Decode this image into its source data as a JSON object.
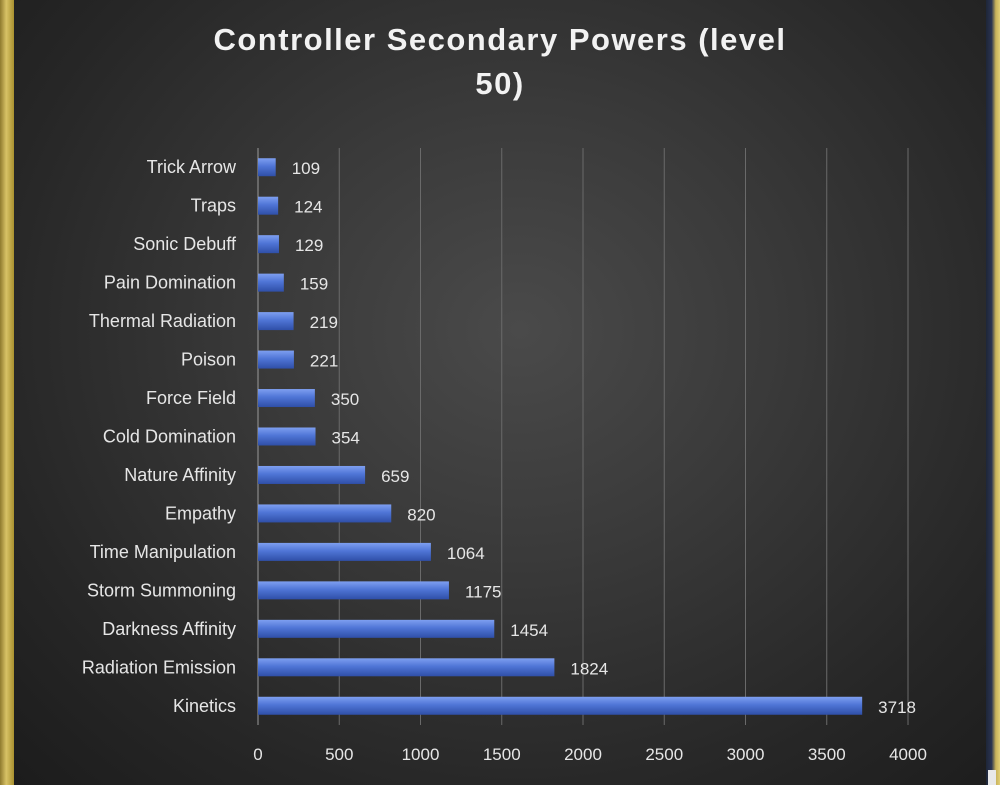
{
  "chart_data": {
    "type": "bar",
    "orientation": "horizontal",
    "title_lines": [
      "Controller Secondary Powers (level",
      "50)"
    ],
    "categories": [
      "Trick Arrow",
      "Traps",
      "Sonic Debuff",
      "Pain Domination",
      "Thermal Radiation",
      "Poison",
      "Force Field",
      "Cold Domination",
      "Nature Affinity",
      "Empathy",
      "Time Manipulation",
      "Storm Summoning",
      "Darkness Affinity",
      "Radiation Emission",
      "Kinetics"
    ],
    "values": [
      109,
      124,
      129,
      159,
      219,
      221,
      350,
      354,
      659,
      820,
      1064,
      1175,
      1454,
      1824,
      3718
    ],
    "xlim": [
      0,
      4000
    ],
    "xticks": [
      0,
      500,
      1000,
      1500,
      2000,
      2500,
      3000,
      3500,
      4000
    ],
    "grid": true,
    "data_labels": true,
    "legend": "none",
    "bar_color": "#4f75d6"
  }
}
